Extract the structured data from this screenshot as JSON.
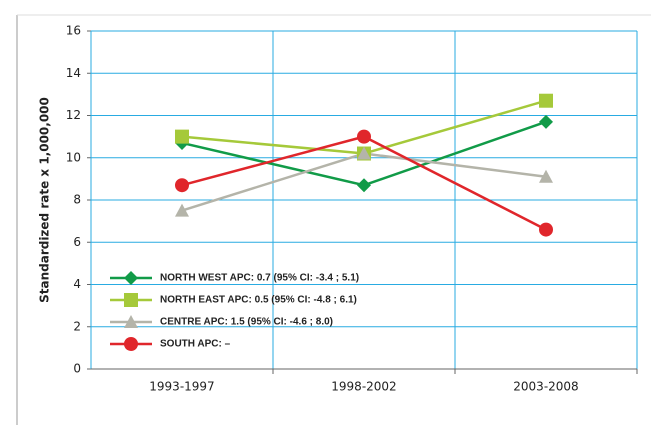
{
  "chart_data": {
    "type": "line",
    "y_label": "Standardized rate x 1,000,000",
    "categories": [
      "1993-1997",
      "1998-2002",
      "2003-2008"
    ],
    "series": [
      {
        "name": "NORTH WEST APC: 0.7 (95% CI: -3.4 ; 5.1)",
        "color": "#119b48",
        "marker": "diamond",
        "values": [
          10.7,
          8.7,
          11.7
        ]
      },
      {
        "name": "NORTH EAST APC: 0.5 (95% CI: -4.8 ; 6.1)",
        "color": "#a5c93a",
        "marker": "square",
        "values": [
          11.0,
          10.2,
          12.7
        ]
      },
      {
        "name": "CENTRE APC: 1.5 (95% CI: -4.6 ; 8.0)",
        "color": "#b4b4a9",
        "marker": "triangle",
        "values": [
          7.5,
          10.2,
          9.1
        ]
      },
      {
        "name": "SOUTH APC: –",
        "color": "#e0262b",
        "marker": "circle",
        "values": [
          8.7,
          11.0,
          6.6
        ]
      }
    ],
    "ylim": [
      0,
      16
    ],
    "yticks": [
      0,
      2,
      4,
      6,
      8,
      10,
      12,
      14,
      16
    ],
    "grid": true,
    "legend": "lower left"
  }
}
